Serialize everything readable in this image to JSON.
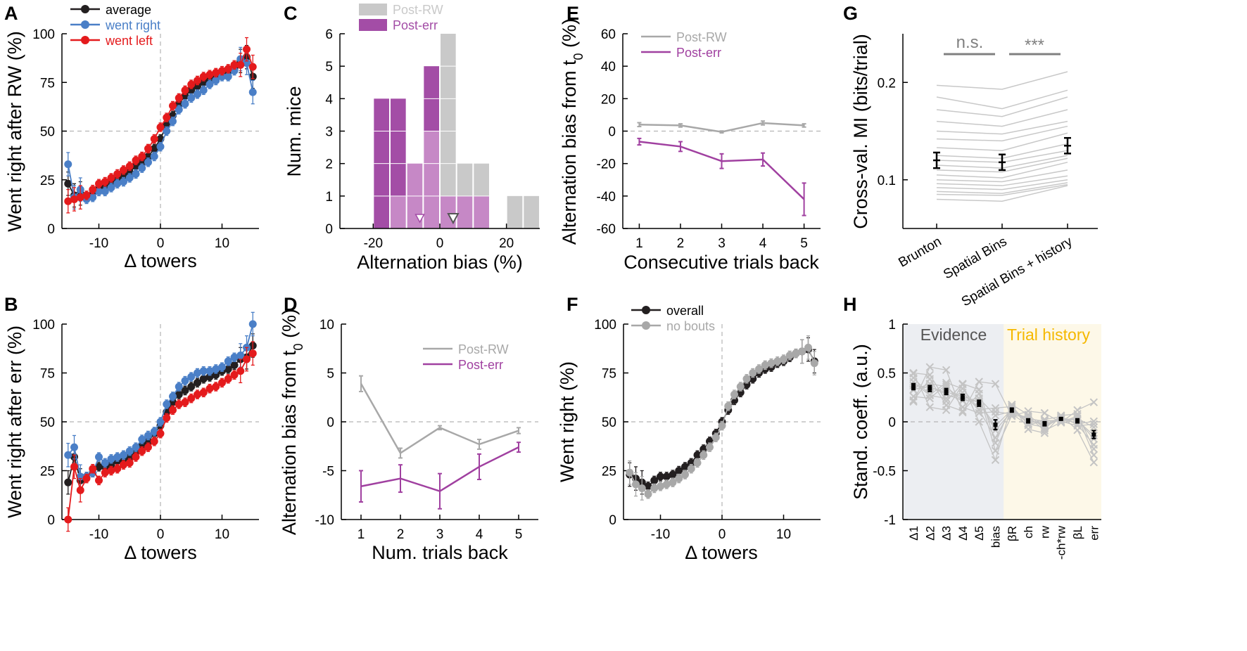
{
  "panel_letters": {
    "A": "A",
    "B": "B",
    "C": "C",
    "D": "D",
    "E": "E",
    "F": "F",
    "G": "G",
    "H": "H"
  },
  "colors": {
    "black": "#231f20",
    "blue": "#4a7fc7",
    "red": "#e41a1c",
    "gray": "#a8a8a8",
    "purple": "#a040a0",
    "light_gray": "#c9c9c9",
    "evidence_bg": "#eceef2",
    "history_bg": "#fdf8e8",
    "history_text": "#f5b800",
    "evidence_text": "#555555"
  },
  "chart_data": [
    {
      "id": "A",
      "type": "line",
      "xlabel": "Δ towers",
      "ylabel": "Went right after RW (%)",
      "xlim": [
        -16,
        16
      ],
      "ylim": [
        0,
        100
      ],
      "xticks": [
        -10,
        0,
        10
      ],
      "yticks": [
        0,
        25,
        50,
        75,
        100
      ],
      "x": [
        -15,
        -14,
        -13,
        -12,
        -11,
        -10,
        -9,
        -8,
        -7,
        -6,
        -5,
        -4,
        -3,
        -2,
        -1,
        0,
        1,
        2,
        3,
        4,
        5,
        6,
        7,
        8,
        9,
        10,
        11,
        12,
        13,
        14,
        15
      ],
      "series": [
        {
          "name": "average",
          "values": [
            23,
            17,
            18,
            16,
            18,
            21,
            21,
            23,
            25,
            27,
            29,
            32,
            34,
            37,
            41,
            46,
            53,
            58,
            64,
            68,
            71,
            73,
            75,
            77,
            78,
            80,
            81,
            82,
            86,
            88,
            78
          ]
        },
        {
          "name": "went right",
          "values": [
            33,
            16,
            20,
            15,
            16,
            19,
            19,
            21,
            23,
            24,
            26,
            28,
            31,
            34,
            37,
            42,
            50,
            55,
            61,
            64,
            67,
            69,
            71,
            74,
            76,
            78,
            78,
            81,
            87,
            85,
            70
          ]
        },
        {
          "name": "went left",
          "values": [
            14,
            15,
            16,
            17,
            20,
            23,
            24,
            26,
            28,
            30,
            32,
            35,
            37,
            41,
            46,
            52,
            57,
            63,
            67,
            71,
            74,
            76,
            78,
            79,
            80,
            81,
            82,
            84,
            84,
            92,
            83
          ]
        }
      ]
    },
    {
      "id": "B",
      "type": "line",
      "xlabel": "Δ towers",
      "ylabel": "Went right after err (%)",
      "xlim": [
        -16,
        16
      ],
      "ylim": [
        0,
        100
      ],
      "xticks": [
        -10,
        0,
        10
      ],
      "yticks": [
        0,
        25,
        50,
        75,
        100
      ],
      "x": [
        -15,
        -14,
        -13,
        -12,
        -11,
        -10,
        -9,
        -8,
        -7,
        -6,
        -5,
        -4,
        -3,
        -2,
        -1,
        0,
        1,
        2,
        3,
        4,
        5,
        6,
        7,
        8,
        9,
        10,
        11,
        12,
        13,
        14,
        15
      ],
      "series": [
        {
          "name": "average",
          "values": [
            19,
            32,
            20,
            22,
            24,
            27,
            27,
            28,
            30,
            30,
            32,
            35,
            38,
            40,
            44,
            48,
            55,
            60,
            64,
            66,
            68,
            70,
            72,
            73,
            74,
            76,
            77,
            79,
            82,
            83,
            89
          ]
        },
        {
          "name": "went right",
          "values": [
            33,
            37,
            22,
            22,
            24,
            32,
            29,
            31,
            32,
            33,
            35,
            37,
            41,
            43,
            45,
            50,
            59,
            63,
            68,
            71,
            73,
            75,
            76,
            76,
            77,
            78,
            81,
            83,
            84,
            88,
            100
          ]
        },
        {
          "name": "went left",
          "values": [
            0,
            27,
            15,
            21,
            26,
            20,
            24,
            25,
            26,
            28,
            29,
            32,
            35,
            37,
            40,
            44,
            52,
            56,
            59,
            60,
            62,
            64,
            65,
            67,
            68,
            70,
            72,
            74,
            76,
            82,
            85
          ]
        }
      ]
    },
    {
      "id": "C",
      "type": "bar",
      "xlabel": "Alternation bias (%)",
      "ylabel": "Num. mice",
      "xlim": [
        -30,
        30
      ],
      "ylim": [
        0,
        6
      ],
      "xticks": [
        -20,
        0,
        20
      ],
      "yticks": [
        0,
        1,
        2,
        3,
        4,
        5,
        6
      ],
      "series": [
        {
          "name": "Post-RW",
          "bins": [
            [
              -20,
              -15,
              0
            ],
            [
              -15,
              -10,
              1
            ],
            [
              -10,
              -5,
              2
            ],
            [
              -5,
              0,
              3
            ],
            [
              0,
              5,
              6
            ],
            [
              5,
              10,
              2
            ],
            [
              10,
              15,
              2
            ],
            [
              20,
              25,
              1
            ],
            [
              25,
              30,
              1
            ]
          ]
        },
        {
          "name": "Post-err",
          "bins": [
            [
              -20,
              -15,
              4
            ],
            [
              -15,
              -10,
              4
            ],
            [
              -10,
              -5,
              2
            ],
            [
              -5,
              0,
              5
            ],
            [
              0,
              5,
              1
            ],
            [
              5,
              10,
              1
            ],
            [
              10,
              15,
              1
            ]
          ]
        }
      ],
      "markers": {
        "Post-err_mean": -6,
        "Post-RW_mean": 4
      }
    },
    {
      "id": "D",
      "type": "line",
      "xlabel": "Num. trials back",
      "ylabel": "Alternation bias from t0 (%)",
      "xlim": [
        0.5,
        5.5
      ],
      "ylim": [
        -10,
        10
      ],
      "xticks": [
        1,
        2,
        3,
        4,
        5
      ],
      "yticks": [
        -10,
        -5,
        0,
        5,
        10
      ],
      "x": [
        1,
        2,
        3,
        4,
        5
      ],
      "series": [
        {
          "name": "Post-RW",
          "values": [
            3.9,
            -3.2,
            -0.6,
            -2.3,
            -0.9
          ],
          "err": [
            0.8,
            0.5,
            0.2,
            0.5,
            0.3
          ]
        },
        {
          "name": "Post-err",
          "values": [
            -6.6,
            -5.8,
            -7.1,
            -4.6,
            -2.6
          ],
          "err": [
            1.6,
            1.4,
            1.8,
            1.3,
            0.5
          ]
        }
      ]
    },
    {
      "id": "E",
      "type": "line",
      "xlabel": "Consecutive trials back",
      "ylabel": "Alternation bias from t0 (%)",
      "xlim": [
        0.6,
        5.4
      ],
      "ylim": [
        -60,
        60
      ],
      "xticks": [
        1,
        2,
        3,
        4,
        5
      ],
      "yticks": [
        -60,
        -40,
        -20,
        0,
        20,
        40,
        60
      ],
      "x": [
        1,
        2,
        3,
        4,
        5
      ],
      "series": [
        {
          "name": "Post-RW",
          "values": [
            4,
            3.5,
            -0.5,
            5,
            3.5
          ],
          "err": [
            1.2,
            1,
            0.6,
            1.2,
            1
          ]
        },
        {
          "name": "Post-err",
          "values": [
            -6.5,
            -9.5,
            -18.5,
            -17.5,
            -42
          ],
          "err": [
            2,
            3,
            4.5,
            4,
            10
          ]
        }
      ]
    },
    {
      "id": "F",
      "type": "line",
      "xlabel": "Δ towers",
      "ylabel": "Went right (%)",
      "xlim": [
        -16,
        16
      ],
      "ylim": [
        0,
        100
      ],
      "xticks": [
        -10,
        0,
        10
      ],
      "yticks": [
        0,
        25,
        50,
        75,
        100
      ],
      "x": [
        -15,
        -14,
        -13,
        -12,
        -11,
        -10,
        -9,
        -8,
        -7,
        -6,
        -5,
        -4,
        -3,
        -2,
        -1,
        0,
        1,
        2,
        3,
        4,
        5,
        6,
        7,
        8,
        9,
        10,
        11,
        12,
        13,
        14,
        15
      ],
      "series": [
        {
          "name": "overall",
          "values": [
            23,
            21,
            19,
            17,
            20,
            22,
            22,
            23,
            25,
            27,
            29,
            33,
            36,
            40,
            44,
            50,
            56,
            61,
            65,
            69,
            72,
            75,
            77,
            78,
            80,
            81,
            83,
            85,
            86,
            87,
            81
          ]
        },
        {
          "name": "no bouts",
          "values": [
            24,
            18,
            16,
            13,
            16,
            17,
            18,
            19,
            21,
            23,
            26,
            29,
            33,
            37,
            42,
            48,
            58,
            64,
            68,
            72,
            75,
            77,
            79,
            80,
            81,
            82,
            84,
            85,
            86,
            88,
            80
          ]
        }
      ]
    },
    {
      "id": "G",
      "type": "line",
      "xlabel": "",
      "ylabel": "Cross-val. MI (bits/trial)",
      "categories": [
        "Brunton",
        "Spatial Bins",
        "Spatial Bins + history"
      ],
      "ylim": [
        0.05,
        0.25
      ],
      "yticks": [
        0.1,
        0.2
      ],
      "individual": [
        [
          0.197,
          0.193,
          0.211
        ],
        [
          0.185,
          0.173,
          0.192
        ],
        [
          0.172,
          0.165,
          0.185
        ],
        [
          0.16,
          0.155,
          0.172
        ],
        [
          0.15,
          0.147,
          0.16
        ],
        [
          0.142,
          0.14,
          0.155
        ],
        [
          0.133,
          0.13,
          0.148
        ],
        [
          0.125,
          0.122,
          0.137
        ],
        [
          0.12,
          0.118,
          0.13
        ],
        [
          0.115,
          0.112,
          0.125
        ],
        [
          0.11,
          0.108,
          0.122
        ],
        [
          0.105,
          0.102,
          0.118
        ],
        [
          0.1,
          0.098,
          0.11
        ],
        [
          0.096,
          0.094,
          0.104
        ],
        [
          0.092,
          0.09,
          0.1
        ],
        [
          0.088,
          0.086,
          0.097
        ],
        [
          0.085,
          0.084,
          0.095
        ],
        [
          0.08,
          0.078,
          0.094
        ]
      ],
      "means": [
        0.12,
        0.118,
        0.135
      ],
      "sem": [
        0.008,
        0.008,
        0.008
      ],
      "significance": [
        {
          "label": "n.s."
        },
        {
          "label": "***"
        }
      ]
    },
    {
      "id": "H",
      "type": "scatter",
      "xlabel": "",
      "ylabel": "Stand. coeff. (a.u.)",
      "categories": [
        "Δ1",
        "Δ2",
        "Δ3",
        "Δ4",
        "Δ5",
        "bias",
        "βR",
        "ch",
        "rw",
        "-ch*rw",
        "βL",
        "err"
      ],
      "ylim": [
        -1,
        1
      ],
      "yticks": [
        -1,
        -0.5,
        0,
        0.5,
        1
      ],
      "means": [
        0.36,
        0.34,
        0.31,
        0.25,
        0.19,
        -0.03,
        0.12,
        0.01,
        -0.02,
        0.03,
        0.01,
        -0.13
      ],
      "sem": [
        0.03,
        0.03,
        0.03,
        0.03,
        0.03,
        0.05,
        0.02,
        0.02,
        0.02,
        0.01,
        0.02,
        0.04
      ],
      "region_labels": {
        "evidence": "Evidence",
        "history": "Trial history"
      }
    }
  ]
}
